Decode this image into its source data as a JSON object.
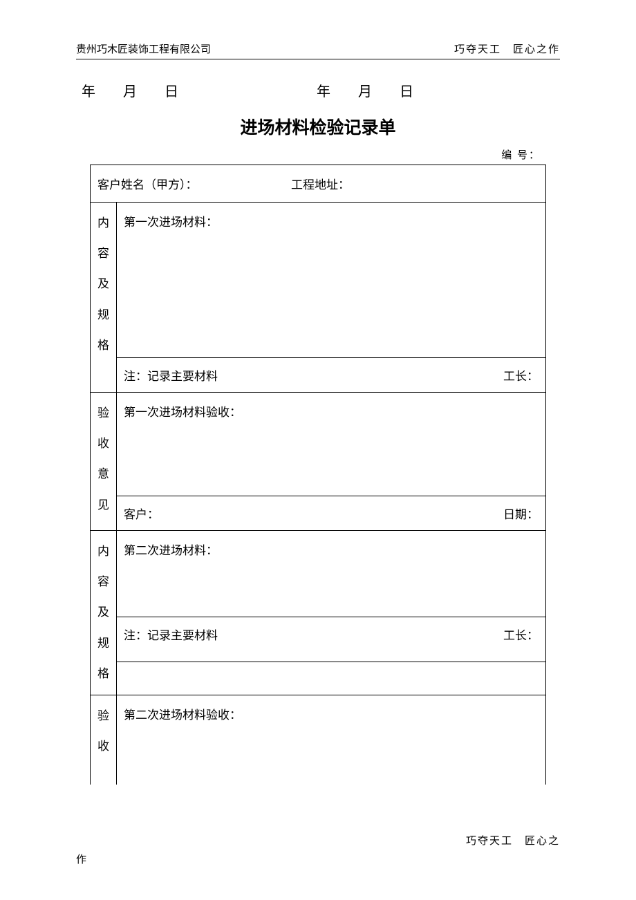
{
  "header": {
    "company": "贵州巧木匠装饰工程有限公司",
    "slogan": "巧夺天工　匠心之作"
  },
  "dateLabels": {
    "year1": "年",
    "month1": "月",
    "day1": "日",
    "year2": "年",
    "month2": "月",
    "day2": "日"
  },
  "title": "进场材料检验记录单",
  "formNo": "编 号：",
  "row1": {
    "customerLabel": "客户姓名（甲方）：",
    "addressLabel": "工程地址："
  },
  "section1": {
    "vlabel": "内容及规格",
    "contentLabel": "第一次进场材料：",
    "noteLabel": "注：记录主要材料",
    "foremanLabel": "工长："
  },
  "section2": {
    "vlabel": "验收意见",
    "contentLabel": "第一次进场材料验收：",
    "customerLabel": "客户：",
    "dateLabel": "日期："
  },
  "section3": {
    "vlabel": "内容及规格",
    "contentLabel": "第二次进场材料：",
    "noteLabel": "注：记录主要材料",
    "foremanLabel": "工长："
  },
  "section4": {
    "vlabel": "验收",
    "contentLabel": "第二次进场材料验收："
  },
  "footer": {
    "rightPart": "巧夺天工　匠心之",
    "leftPart": "作"
  }
}
